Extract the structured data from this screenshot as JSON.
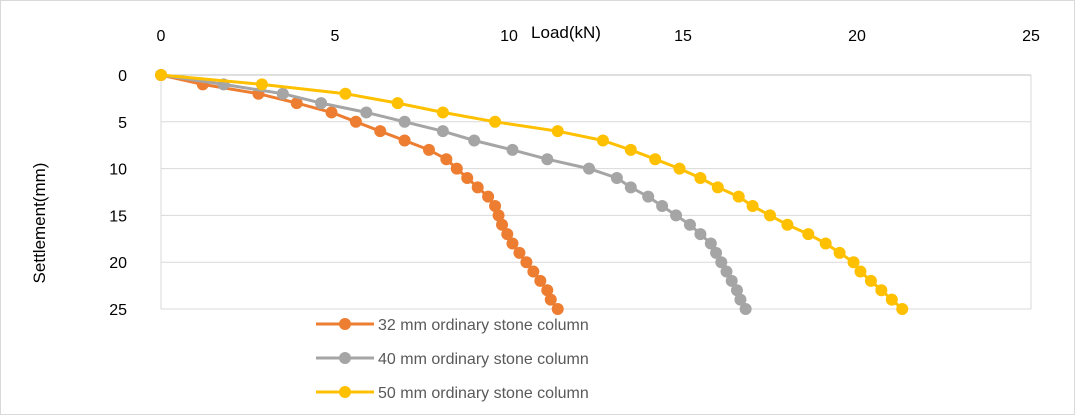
{
  "chart_data": {
    "type": "line",
    "xlabel": "Load(kN)",
    "ylabel": "Settlement(mm)",
    "xlim": [
      0,
      25
    ],
    "ylim": [
      0,
      25
    ],
    "x_reversed": false,
    "y_reversed": true,
    "x_axis_position": "top",
    "x_ticks": [
      0,
      5,
      10,
      15,
      20,
      25
    ],
    "y_ticks": [
      0,
      5,
      10,
      15,
      20,
      25
    ],
    "grid": "horizontal",
    "legend_position": "bottom",
    "series": [
      {
        "name": "32 mm ordinary stone column",
        "color": "#ED7D31",
        "points": [
          [
            0,
            0
          ],
          [
            1.2,
            1
          ],
          [
            2.8,
            2
          ],
          [
            3.9,
            3
          ],
          [
            4.9,
            4
          ],
          [
            5.6,
            5
          ],
          [
            6.3,
            6
          ],
          [
            7.0,
            7
          ],
          [
            7.7,
            8
          ],
          [
            8.2,
            9
          ],
          [
            8.5,
            10
          ],
          [
            8.8,
            11
          ],
          [
            9.1,
            12
          ],
          [
            9.4,
            13
          ],
          [
            9.6,
            14
          ],
          [
            9.7,
            15
          ],
          [
            9.8,
            16
          ],
          [
            9.95,
            17
          ],
          [
            10.1,
            18
          ],
          [
            10.3,
            19
          ],
          [
            10.5,
            20
          ],
          [
            10.7,
            21
          ],
          [
            10.9,
            22
          ],
          [
            11.1,
            23
          ],
          [
            11.2,
            24
          ],
          [
            11.4,
            25
          ]
        ]
      },
      {
        "name": "40 mm ordinary stone column",
        "color": "#A5A5A5",
        "points": [
          [
            0,
            0
          ],
          [
            1.8,
            1
          ],
          [
            3.5,
            2
          ],
          [
            4.6,
            3
          ],
          [
            5.9,
            4
          ],
          [
            7.0,
            5
          ],
          [
            8.1,
            6
          ],
          [
            9.0,
            7
          ],
          [
            10.1,
            8
          ],
          [
            11.1,
            9
          ],
          [
            12.3,
            10
          ],
          [
            13.1,
            11
          ],
          [
            13.5,
            12
          ],
          [
            14.0,
            13
          ],
          [
            14.4,
            14
          ],
          [
            14.8,
            15
          ],
          [
            15.2,
            16
          ],
          [
            15.5,
            17
          ],
          [
            15.8,
            18
          ],
          [
            15.95,
            19
          ],
          [
            16.1,
            20
          ],
          [
            16.25,
            21
          ],
          [
            16.4,
            22
          ],
          [
            16.55,
            23
          ],
          [
            16.65,
            24
          ],
          [
            16.8,
            25
          ]
        ]
      },
      {
        "name": "50 mm ordinary stone column",
        "color": "#FFC000",
        "points": [
          [
            0,
            0
          ],
          [
            2.9,
            1
          ],
          [
            5.3,
            2
          ],
          [
            6.8,
            3
          ],
          [
            8.1,
            4
          ],
          [
            9.6,
            5
          ],
          [
            11.4,
            6
          ],
          [
            12.7,
            7
          ],
          [
            13.5,
            8
          ],
          [
            14.2,
            9
          ],
          [
            14.9,
            10
          ],
          [
            15.5,
            11
          ],
          [
            16.0,
            12
          ],
          [
            16.6,
            13
          ],
          [
            17.0,
            14
          ],
          [
            17.5,
            15
          ],
          [
            18.0,
            16
          ],
          [
            18.6,
            17
          ],
          [
            19.1,
            18
          ],
          [
            19.5,
            19
          ],
          [
            19.9,
            20
          ],
          [
            20.1,
            21
          ],
          [
            20.4,
            22
          ],
          [
            20.7,
            23
          ],
          [
            21.0,
            24
          ],
          [
            21.3,
            25
          ]
        ]
      }
    ]
  }
}
